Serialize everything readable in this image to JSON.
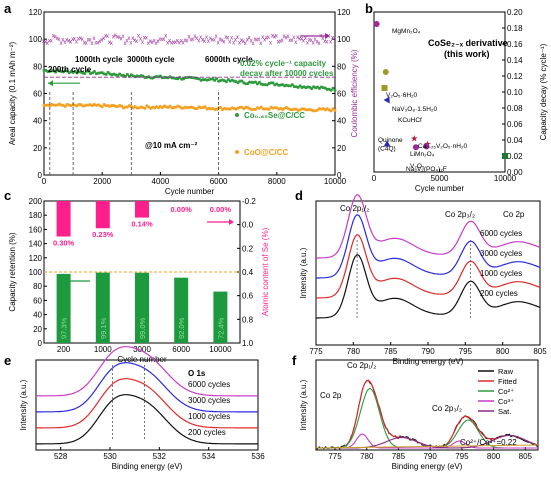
{
  "chart_data": [
    {
      "panel": "a",
      "type": "scatter",
      "xlabel": "Cycle number",
      "ylabel": "Areal capacity (0.1 mAh m⁻²)",
      "y2label": "Coulombic efficiency (%)",
      "xlim": [
        0,
        10000
      ],
      "ylim": [
        0,
        120
      ],
      "y2lim": [
        0,
        120
      ],
      "xticks": [
        "0",
        "2000",
        "4000",
        "6000",
        "8000",
        "10000"
      ],
      "yticks": [
        "0",
        "20",
        "40",
        "60",
        "80",
        "100",
        "120"
      ],
      "y2ticks": [
        "0",
        "20",
        "40",
        "60",
        "80",
        "100",
        "120"
      ],
      "series": [
        {
          "name": "Co₀.₈₅Se@C/CC",
          "color": "#2e9a3e",
          "x": [
            0,
            1000,
            2000,
            3000,
            4000,
            5000,
            6000,
            7000,
            8000,
            9000,
            10000
          ],
          "y": [
            77,
            76,
            75,
            73,
            72,
            71,
            70,
            68,
            67,
            65,
            63
          ]
        },
        {
          "name": "CoO@C/CC",
          "color": "#f5a020",
          "x": [
            0,
            1000,
            2000,
            3000,
            4000,
            5000,
            6000,
            7000,
            8000,
            9000,
            10000
          ],
          "y": [
            52,
            51,
            51,
            50,
            50,
            50,
            49,
            49,
            49,
            48,
            48
          ]
        },
        {
          "name": "Coulombic efficiency",
          "color": "#9b2a9b",
          "axis": "right",
          "x": [
            0,
            1000,
            2000,
            3000,
            4000,
            5000,
            6000,
            7000,
            8000,
            9000,
            10000
          ],
          "y": [
            100,
            100,
            100,
            100,
            100,
            100,
            100,
            100,
            100,
            100,
            100
          ]
        }
      ],
      "annotations": [
        "200th cycle",
        "1000th cycle",
        "3000th cycle",
        "6000th cycle",
        "0.02% cycle⁻¹ capacity",
        "decay after 10000 cycles",
        "@10 mA cm⁻²"
      ],
      "legend": [
        "Co₀.₈₅Se@C/CC",
        "CoO@C/CC"
      ]
    },
    {
      "panel": "b",
      "type": "scatter",
      "xlabel": "Cycle number",
      "ylabel": "Capacity decay (% cycle⁻¹)",
      "xlim": [
        0,
        10000
      ],
      "ylim": [
        0,
        0.2
      ],
      "xticks": [
        "0",
        "5000",
        "10000"
      ],
      "yticks": [
        "0.00",
        "0.02",
        "0.04",
        "0.06",
        "0.08",
        "0.10",
        "0.12",
        "0.14",
        "0.16",
        "0.18",
        "0.20"
      ],
      "points": [
        {
          "label": "MgMn₂O₄",
          "x": 200,
          "y": 0.185,
          "color": "#9b2a9b",
          "marker": "circle"
        },
        {
          "label": "V₂O₅·6H₂0",
          "x": 900,
          "y": 0.125,
          "color": "#9b9b2a",
          "marker": "circle"
        },
        {
          "label": "NaV₃O₈·1.5H₂0",
          "x": 800,
          "y": 0.105,
          "color": "#9b9b2a",
          "marker": "square"
        },
        {
          "label": "KCuHCf",
          "x": 1000,
          "y": 0.09,
          "color": "#2a2ab0",
          "marker": "triangle-left"
        },
        {
          "label": "Quinone (C4Q)",
          "x": 1000,
          "y": 0.035,
          "color": "#2a2ab0",
          "marker": "triangle"
        },
        {
          "label": "Ca₀.₂₅V₂O₅·nH₂0",
          "x": 3000,
          "y": 0.042,
          "color": "#b01e3c",
          "marker": "star"
        },
        {
          "label": "Na₃V₂(PO₄)₂F",
          "x": 4000,
          "y": 0.035,
          "color": "#b01e3c",
          "marker": "star"
        },
        {
          "label": "LiMn₂O₄",
          "x": 3200,
          "y": 0.031,
          "color": "#9b2a9b",
          "marker": "circle"
        },
        {
          "label": "V₂O₅",
          "x": 4000,
          "y": 0.032,
          "color": "#9b2a9b",
          "marker": "circle"
        },
        {
          "label": "CoSe₂₋ₓ derivative (this work)",
          "x": 10000,
          "y": 0.02,
          "color": "#1e7a2e",
          "marker": "square"
        }
      ]
    },
    {
      "panel": "c",
      "type": "bar",
      "xlabel": "Cycle number",
      "ylabel": "Capacity retention (%)",
      "y2label": "Atomic content of Se (%)",
      "categories": [
        "200",
        "1000",
        "3000",
        "6000",
        "10000"
      ],
      "ylim": [
        0,
        200
      ],
      "y2lim": [
        1.0,
        -0.2
      ],
      "yticks": [
        "0",
        "20",
        "40",
        "60",
        "80",
        "100",
        "120",
        "140",
        "160",
        "180",
        "200"
      ],
      "y2ticks": [
        "-0.2",
        "0.0",
        "0.2",
        "0.4",
        "0.6",
        "0.8",
        "1.0"
      ],
      "series": [
        {
          "name": "Capacity retention",
          "color": "#1e9a3e",
          "values": [
            97.3,
            99.1,
            99.0,
            92.0,
            72.4
          ],
          "labels": [
            "97.3%",
            "99.1%",
            "99.0%",
            "92.0%",
            "72.4%"
          ]
        },
        {
          "name": "Atomic content of Se",
          "color": "#ff1f8c",
          "axis": "right",
          "values": [
            0.3,
            0.23,
            0.14,
            0.0,
            0.0
          ],
          "labels": [
            "0.30%",
            "0.23%",
            "0.14%",
            "0.00%",
            "0.00%"
          ]
        }
      ]
    },
    {
      "panel": "d",
      "type": "line",
      "xlabel": "Binding energy (eV)",
      "ylabel": "Intensity (a.u.)",
      "xlim": [
        775,
        805
      ],
      "xticks": [
        "775",
        "780",
        "785",
        "790",
        "795",
        "800",
        "805"
      ],
      "annotations": [
        "Co 2p₁/₂",
        "Co 2p₃/₂",
        "Co 2p"
      ],
      "series": [
        {
          "name": "6000 cycles",
          "color": "#c83cc8"
        },
        {
          "name": "3000 cycles",
          "color": "#2a2ae0"
        },
        {
          "name": "1000 cycles",
          "color": "#e02a2a"
        },
        {
          "name": "200 cycles",
          "color": "#111111"
        }
      ]
    },
    {
      "panel": "e",
      "type": "line",
      "xlabel": "Binding energy (eV)",
      "ylabel": "Intensity (a.u.)",
      "xlim": [
        527,
        536
      ],
      "xticks": [
        "528",
        "530",
        "532",
        "534",
        "536"
      ],
      "annotations": [
        "O 1s"
      ],
      "series": [
        {
          "name": "6000 cycles",
          "color": "#c83cc8"
        },
        {
          "name": "3000 cycles",
          "color": "#2a2ae0"
        },
        {
          "name": "1000 cycles",
          "color": "#e02a2a"
        },
        {
          "name": "200 cycles",
          "color": "#111111"
        }
      ]
    },
    {
      "panel": "f",
      "type": "line",
      "xlabel": "Binding energy (eV)",
      "ylabel": "Intensity (a.u.)",
      "xlim": [
        772,
        807
      ],
      "xticks": [
        "775",
        "780",
        "785",
        "790",
        "795",
        "800",
        "805"
      ],
      "annotations": [
        "Co 2p",
        "Co 2p₁/₂",
        "Co 2p₃/₂",
        "Co²⁺/Co³⁺=0.22"
      ],
      "legend": [
        "Raw",
        "Fitted",
        "Co²⁺",
        "Co³⁺",
        "Sat."
      ],
      "legend_colors": [
        "#111111",
        "#e02a2a",
        "#2e9a3e",
        "#c83cc8",
        "#8a2a8a"
      ]
    }
  ]
}
